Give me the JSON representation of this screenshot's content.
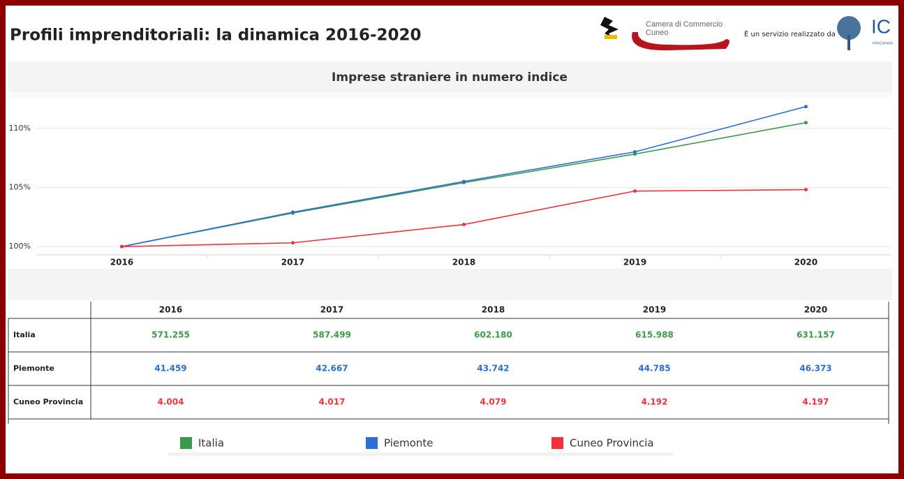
{
  "header": {
    "title": "Profili imprenditoriali: la dinamica 2016-2020",
    "chamber_line1": "Camera di Commercio",
    "chamber_line2": "Cuneo",
    "service_text": "È un servizio realizzato da",
    "ic_logo": "IC",
    "ic_caption": "InfoCamere"
  },
  "chart_data": {
    "type": "line",
    "title": "Imprese straniere in numero indice",
    "categories": [
      "2016",
      "2017",
      "2018",
      "2019",
      "2020"
    ],
    "series": [
      {
        "name": "Italia",
        "color": "#3a9a4a",
        "values": [
          100,
          102.84,
          105.41,
          107.83,
          110.49
        ]
      },
      {
        "name": "Piemonte",
        "color": "#2a6fd6",
        "values": [
          100,
          102.91,
          105.51,
          108.02,
          111.85
        ]
      },
      {
        "name": "Cuneo Provincia",
        "color": "#f0323c",
        "values": [
          100,
          100.32,
          101.87,
          104.7,
          104.82
        ]
      }
    ],
    "ylim": [
      99.3,
      112.6
    ],
    "yticks": [
      {
        "value": 100,
        "label": "100%"
      },
      {
        "value": 105,
        "label": "105%"
      },
      {
        "value": 110,
        "label": "110%"
      }
    ],
    "grid": true,
    "legend": "bottom"
  },
  "table": {
    "columns": [
      "2016",
      "2017",
      "2018",
      "2019",
      "2020"
    ],
    "rows": [
      [
        "Italia",
        "571.255",
        "587.499",
        "602.180",
        "615.988",
        "631.157"
      ],
      [
        "Piemonte",
        "41.459",
        "42.667",
        "43.742",
        "44.785",
        "46.373"
      ],
      [
        "Cuneo Provincia",
        "4.004",
        "4.017",
        "4.079",
        "4.192",
        "4.197"
      ]
    ]
  }
}
